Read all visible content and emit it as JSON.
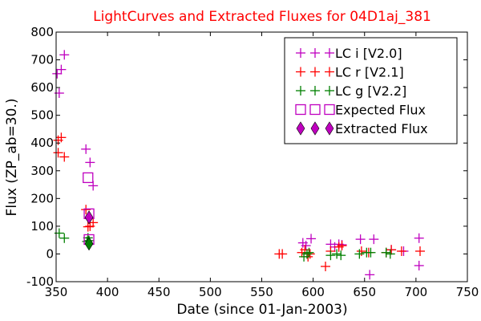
{
  "chart_data": {
    "type": "scatter",
    "title": "LightCurves and Extracted Fluxes for 04D1aj_381",
    "title_color": "#ff0000",
    "xlabel": "Date (since 01-Jan-2003)",
    "ylabel": "Flux (ZP_ab=30.)",
    "xlim": [
      350,
      750
    ],
    "ylim": [
      -100,
      800
    ],
    "xticks": [
      350,
      400,
      450,
      500,
      550,
      600,
      650,
      700,
      750
    ],
    "yticks": [
      -100,
      0,
      100,
      200,
      300,
      400,
      500,
      600,
      700,
      800
    ],
    "grid": false,
    "legend_position": "top-right",
    "series": [
      {
        "name": "LC i [V2.0]",
        "color": "#bf00bf",
        "marker": "plus",
        "points": [
          [
            351,
            650
          ],
          [
            353,
            580
          ],
          [
            355,
            665
          ],
          [
            358,
            718
          ],
          [
            379,
            378
          ],
          [
            383,
            330
          ],
          [
            386,
            246
          ],
          [
            590,
            40
          ],
          [
            593,
            30
          ],
          [
            598,
            55
          ],
          [
            617,
            35
          ],
          [
            621,
            25
          ],
          [
            625,
            35
          ],
          [
            628,
            33
          ],
          [
            646,
            53
          ],
          [
            655,
            -75
          ],
          [
            659,
            53
          ],
          [
            676,
            15
          ],
          [
            688,
            10
          ],
          [
            703,
            57
          ],
          [
            703,
            -42
          ]
        ]
      },
      {
        "name": "LC r [V2.1]",
        "color": "#ff0000",
        "marker": "plus",
        "points": [
          [
            352,
            365
          ],
          [
            352,
            410
          ],
          [
            355,
            420
          ],
          [
            358,
            350
          ],
          [
            379,
            160
          ],
          [
            381,
            98
          ],
          [
            383,
            100
          ],
          [
            386,
            113
          ],
          [
            567,
            0
          ],
          [
            570,
            0
          ],
          [
            589,
            5
          ],
          [
            592,
            15
          ],
          [
            595,
            -10
          ],
          [
            597,
            0
          ],
          [
            612,
            -45
          ],
          [
            617,
            10
          ],
          [
            625,
            25
          ],
          [
            628,
            30
          ],
          [
            647,
            10
          ],
          [
            654,
            5
          ],
          [
            671,
            5
          ],
          [
            676,
            15
          ],
          [
            686,
            10
          ],
          [
            704,
            10
          ]
        ]
      },
      {
        "name": "LC g [V2.2]",
        "color": "#008000",
        "marker": "plus",
        "points": [
          [
            353,
            75
          ],
          [
            358,
            57
          ],
          [
            380,
            45
          ],
          [
            381,
            58
          ],
          [
            382,
            48
          ],
          [
            591,
            -10
          ],
          [
            594,
            0
          ],
          [
            596,
            5
          ],
          [
            617,
            -5
          ],
          [
            623,
            0
          ],
          [
            627,
            -5
          ],
          [
            645,
            0
          ],
          [
            652,
            5
          ],
          [
            656,
            5
          ],
          [
            671,
            5
          ],
          [
            675,
            0
          ]
        ]
      },
      {
        "name": "Expected Flux",
        "color": "#bf00bf",
        "marker": "square-open",
        "points": [
          [
            381,
            275
          ],
          [
            382,
            145
          ],
          [
            382,
            52
          ]
        ]
      },
      {
        "name": "Extracted Flux",
        "color": "#bf00bf",
        "marker": "diamond",
        "points": [
          [
            382,
            132
          ]
        ]
      },
      {
        "name": "",
        "color": "#008000",
        "marker": "diamond",
        "points": [
          [
            382,
            37
          ]
        ]
      }
    ],
    "legend": [
      {
        "label": "LC i [V2.0]",
        "color": "#bf00bf",
        "marker": "plus"
      },
      {
        "label": "LC r [V2.1]",
        "color": "#ff0000",
        "marker": "plus"
      },
      {
        "label": "LC g [V2.2]",
        "color": "#008000",
        "marker": "plus"
      },
      {
        "label": "Expected Flux",
        "color": "#bf00bf",
        "marker": "square-open"
      },
      {
        "label": "Extracted Flux",
        "color": "#bf00bf",
        "marker": "diamond"
      }
    ]
  }
}
